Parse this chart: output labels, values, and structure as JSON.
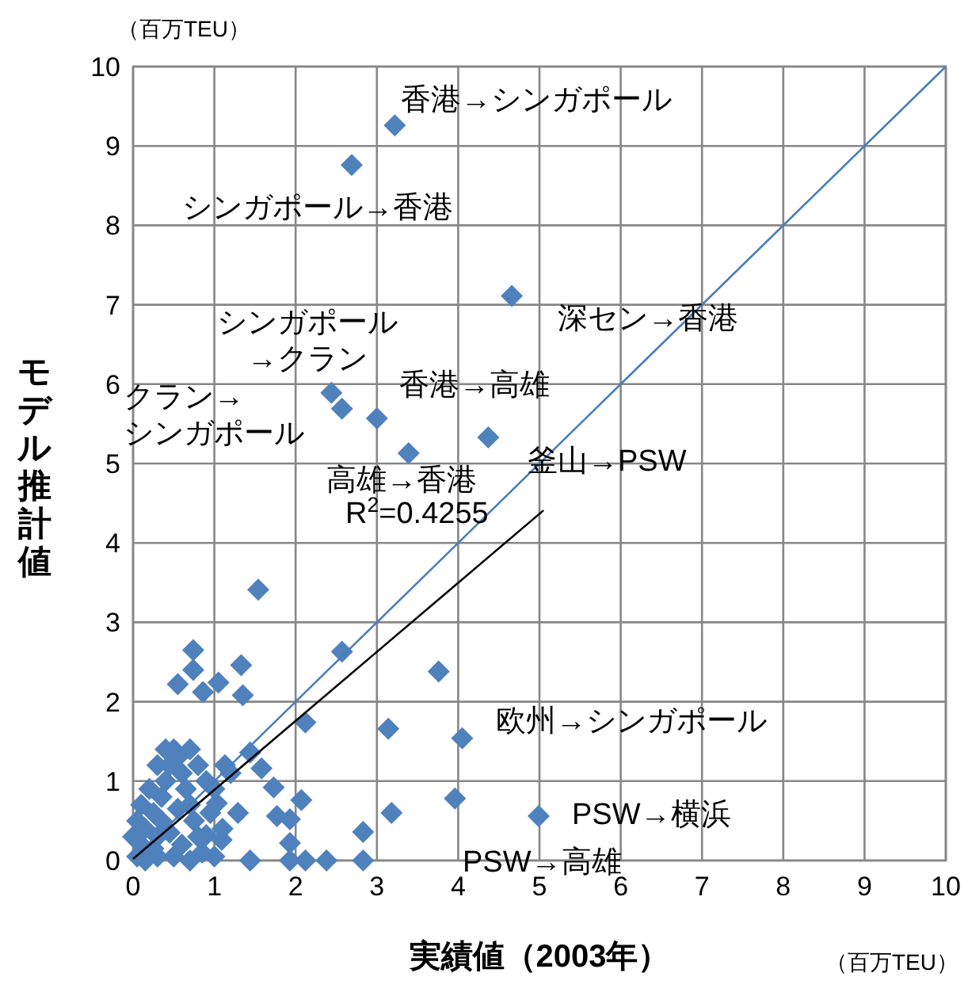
{
  "chart_data": {
    "type": "scatter",
    "xlabel": "実績値（2003年）",
    "ylabel": "モデル推計値",
    "xlim": [
      0,
      10
    ],
    "ylim": [
      0,
      10
    ],
    "xticks": [
      0,
      1,
      2,
      3,
      4,
      5,
      6,
      7,
      8,
      9,
      10
    ],
    "yticks": [
      0,
      1,
      2,
      3,
      4,
      5,
      6,
      7,
      8,
      9,
      10
    ],
    "grid": true,
    "series": [
      {
        "color": "#4f81bd",
        "marker": "diamond",
        "x": [
          3.22,
          2.69,
          4.66,
          2.44,
          2.57,
          3.0,
          4.37,
          3.39,
          1.54,
          2.57,
          3.76,
          2.12,
          3.14,
          4.05,
          3.96,
          4.99,
          3.18,
          2.83,
          2.83,
          0.74,
          0.74,
          0.55,
          0.86,
          1.05,
          1.33,
          1.35,
          1.44,
          1.58,
          1.13,
          1.73,
          2.07,
          1.29,
          1.77,
          1.93,
          1.93,
          1.44,
          1.93,
          2.12,
          2.38,
          1.03,
          0.9,
          1.09,
          0.05,
          0.1,
          0.15,
          0.25,
          0.3,
          0.35,
          0.4,
          0.45,
          0.5,
          0.55,
          0.6,
          0.65,
          0.7,
          0.75,
          0.8,
          0.85,
          0.9,
          0.2,
          0.1,
          0.3,
          0.4,
          0.7,
          0.6,
          0.5,
          0.3,
          1.0,
          1.1,
          0.95,
          0.05,
          0.15,
          0.7,
          1.0,
          0.25,
          0.45,
          0.55,
          0.35,
          0.8,
          1.2,
          0.0
        ],
        "values": [
          9.26,
          8.76,
          7.11,
          5.89,
          5.69,
          5.57,
          5.33,
          5.13,
          3.41,
          2.63,
          2.38,
          1.74,
          1.66,
          1.54,
          0.78,
          0.56,
          0.6,
          0.36,
          0.0,
          2.65,
          2.4,
          2.22,
          2.12,
          2.24,
          2.46,
          2.08,
          1.36,
          1.16,
          1.2,
          0.92,
          0.76,
          0.6,
          0.56,
          0.52,
          0.22,
          0.0,
          0.0,
          0.0,
          0.0,
          0.72,
          0.32,
          0.26,
          0.05,
          0.2,
          0.4,
          0.6,
          0.3,
          0.8,
          1.0,
          1.2,
          1.4,
          1.3,
          1.1,
          0.9,
          0.7,
          0.5,
          0.3,
          0.1,
          1.0,
          0.9,
          0.7,
          1.2,
          1.4,
          1.4,
          0.2,
          0.05,
          0.05,
          0.9,
          0.4,
          0.6,
          0.5,
          0.0,
          0.0,
          0.05,
          0.15,
          0.35,
          0.65,
          0.5,
          1.2,
          1.1,
          0.3
        ]
      },
      {
        "type": "line",
        "color": "#4a7ebb",
        "x": [
          0,
          10
        ],
        "values": [
          0,
          10
        ]
      },
      {
        "type": "line",
        "color": "#000000",
        "x": [
          0,
          5.05
        ],
        "values": [
          0.02,
          4.41
        ]
      }
    ],
    "annotations": [
      "（百万TEU）",
      "（百万TEU）",
      "香港→シンガポール",
      "シンガポール→香港",
      "深セン→香港",
      "シンガポール\n→クラン",
      "クラン→\nシンガポール",
      "香港→高雄",
      "釜山→PSW",
      "高雄→香港",
      "R$^{2}$=0.4255",
      "欧州→シンガポール",
      "PSW→横浜",
      "PSW→高雄"
    ]
  }
}
